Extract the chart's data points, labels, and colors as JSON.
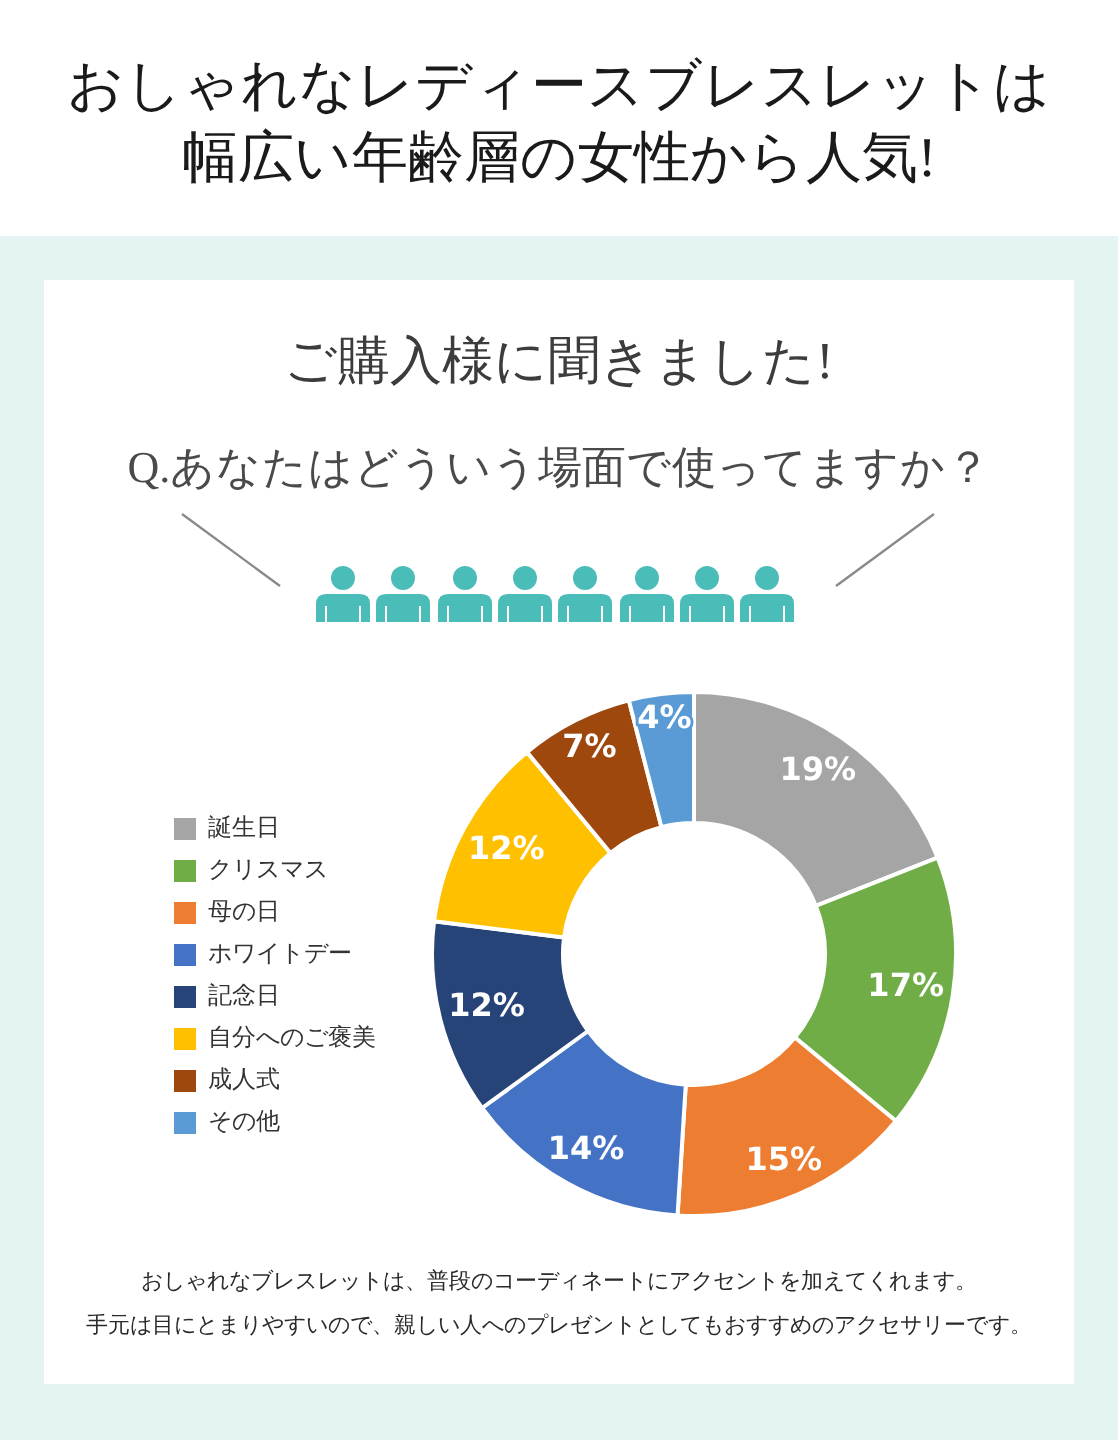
{
  "chart_data": {
    "type": "donut",
    "title": "おしゃれなレディースブレスレットは幅広い年齢層の女性から人気!",
    "subtitle": "ご購入様に聞きました!",
    "annotations": [
      "Q.あなたはどういう場面で使ってますか？",
      "おしゃれなブレスレットは、普段のコーディネートにアクセントを加えてくれます。",
      "手元は目にとまりやすいので、親しい人へのプレゼントとしてもおすすめのアクセサリーです。"
    ],
    "categories": [
      "誕生日",
      "クリスマス",
      "母の日",
      "ホワイトデー",
      "記念日",
      "自分へのご褒美",
      "成人式",
      "その他"
    ],
    "values": [
      19,
      17,
      15,
      14,
      12,
      12,
      7,
      4
    ],
    "colors": [
      "#a5a5a5",
      "#70ad47",
      "#ed7d31",
      "#4472c4",
      "#264478",
      "#ffc000",
      "#9e480e",
      "#5b9bd5"
    ],
    "value_labels": [
      "19%",
      "17%",
      "15%",
      "14%",
      "12%",
      "12%",
      "7%",
      "4%"
    ],
    "legend": "left"
  }
}
